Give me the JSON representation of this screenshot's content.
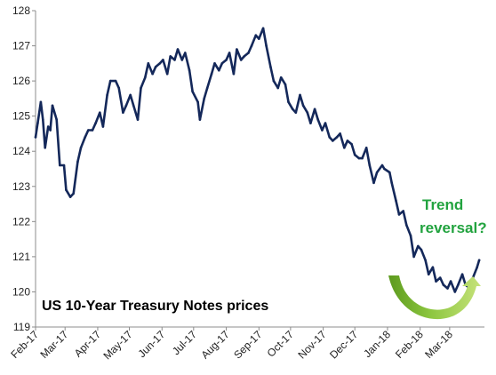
{
  "chart_data": {
    "type": "line",
    "title": "US 10-Year Treasury Notes prices",
    "xlabel": "",
    "ylabel": "",
    "ylim": [
      119,
      128
    ],
    "yticks": [
      119,
      120,
      121,
      122,
      123,
      124,
      125,
      126,
      127,
      128
    ],
    "x_tick_labels": [
      "Feb-17",
      "Mar-17",
      "Apr-17",
      "May-17",
      "Jun-17",
      "Jul-17",
      "Aug-17",
      "Sep-17",
      "Oct-17",
      "Nov-17",
      "Dec-17",
      "Jan-18",
      "Feb-18",
      "Mar-18"
    ],
    "grid": false,
    "legend": "none",
    "series": [
      {
        "color": "#14285a",
        "x": [
          "2017-02-01",
          "2017-02-03",
          "2017-02-06",
          "2017-02-08",
          "2017-02-10",
          "2017-02-13",
          "2017-02-15",
          "2017-02-17",
          "2017-02-21",
          "2017-02-24",
          "2017-02-28",
          "2017-03-02",
          "2017-03-06",
          "2017-03-09",
          "2017-03-13",
          "2017-03-16",
          "2017-03-20",
          "2017-03-23",
          "2017-03-27",
          "2017-03-30",
          "2017-04-03",
          "2017-04-06",
          "2017-04-10",
          "2017-04-13",
          "2017-04-18",
          "2017-04-21",
          "2017-04-25",
          "2017-04-28",
          "2017-05-02",
          "2017-05-05",
          "2017-05-09",
          "2017-05-12",
          "2017-05-16",
          "2017-05-19",
          "2017-05-23",
          "2017-05-26",
          "2017-05-30",
          "2017-06-02",
          "2017-06-06",
          "2017-06-09",
          "2017-06-13",
          "2017-06-16",
          "2017-06-20",
          "2017-06-23",
          "2017-06-27",
          "2017-06-30",
          "2017-07-05",
          "2017-07-07",
          "2017-07-11",
          "2017-07-14",
          "2017-07-18",
          "2017-07-21",
          "2017-07-25",
          "2017-07-28",
          "2017-08-01",
          "2017-08-04",
          "2017-08-08",
          "2017-08-11",
          "2017-08-15",
          "2017-08-18",
          "2017-08-22",
          "2017-08-25",
          "2017-08-29",
          "2017-09-01",
          "2017-09-05",
          "2017-09-08",
          "2017-09-12",
          "2017-09-15",
          "2017-09-19",
          "2017-09-22",
          "2017-09-26",
          "2017-09-29",
          "2017-10-03",
          "2017-10-06",
          "2017-10-10",
          "2017-10-13",
          "2017-10-17",
          "2017-10-20",
          "2017-10-24",
          "2017-10-27",
          "2017-10-31",
          "2017-11-03",
          "2017-11-07",
          "2017-11-10",
          "2017-11-14",
          "2017-11-17",
          "2017-11-21",
          "2017-11-24",
          "2017-11-28",
          "2017-12-01",
          "2017-12-05",
          "2017-12-08",
          "2017-12-12",
          "2017-12-15",
          "2017-12-19",
          "2017-12-22",
          "2017-12-27",
          "2017-12-29",
          "2018-01-03",
          "2018-01-05",
          "2018-01-09",
          "2018-01-12",
          "2018-01-16",
          "2018-01-19",
          "2018-01-23",
          "2018-01-26",
          "2018-01-30",
          "2018-02-02",
          "2018-02-06",
          "2018-02-09",
          "2018-02-13",
          "2018-02-16",
          "2018-02-20",
          "2018-02-23",
          "2018-02-27",
          "2018-03-02",
          "2018-03-06",
          "2018-03-09",
          "2018-03-13",
          "2018-03-16",
          "2018-03-20",
          "2018-03-23",
          "2018-03-27",
          "2018-03-29"
        ],
        "y": [
          124.4,
          124.8,
          125.4,
          124.9,
          124.1,
          124.7,
          124.6,
          125.3,
          124.9,
          123.6,
          123.6,
          122.9,
          122.7,
          122.8,
          123.7,
          124.1,
          124.4,
          124.6,
          124.6,
          124.8,
          125.1,
          124.7,
          125.6,
          126.0,
          126.0,
          125.8,
          125.1,
          125.3,
          125.6,
          125.3,
          124.9,
          125.8,
          126.1,
          126.5,
          126.2,
          126.4,
          126.5,
          126.6,
          126.2,
          126.7,
          126.6,
          126.9,
          126.6,
          126.8,
          126.3,
          125.7,
          125.4,
          124.9,
          125.5,
          125.8,
          126.2,
          126.5,
          126.3,
          126.5,
          126.6,
          126.8,
          126.2,
          126.9,
          126.6,
          126.7,
          126.8,
          127.0,
          127.3,
          127.2,
          127.5,
          127.0,
          126.4,
          126.0,
          125.8,
          126.1,
          125.9,
          125.4,
          125.2,
          125.1,
          125.6,
          125.3,
          125.1,
          124.8,
          125.2,
          124.9,
          124.6,
          124.8,
          124.4,
          124.3,
          124.4,
          124.5,
          124.1,
          124.3,
          124.2,
          123.9,
          123.8,
          123.8,
          124.1,
          123.6,
          123.1,
          123.4,
          123.6,
          123.5,
          123.4,
          123.1,
          122.6,
          122.2,
          122.3,
          121.9,
          121.6,
          121.0,
          121.3,
          121.2,
          120.9,
          120.5,
          120.7,
          120.3,
          120.4,
          120.2,
          120.1,
          120.3,
          120.0,
          120.2,
          120.5,
          120.2,
          120.1,
          120.4,
          120.7,
          120.9
        ]
      }
    ],
    "annotations": [
      {
        "text": "Trend",
        "color": "#22a33f"
      },
      {
        "text": "reversal?",
        "color": "#22a33f"
      }
    ]
  }
}
